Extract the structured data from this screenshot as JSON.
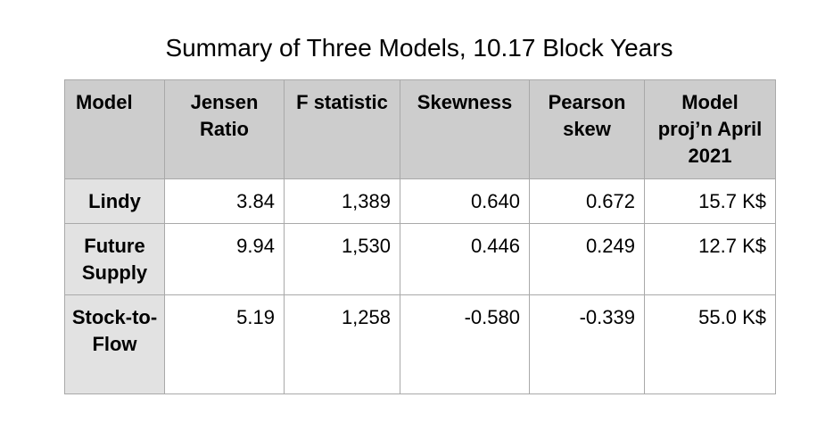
{
  "title": "Summary of Three Models, 10.17 Block Years",
  "chart_data": {
    "type": "table",
    "title": "Summary of Three Models, 10.17 Block Years",
    "columns": [
      "Model",
      "Jensen Ratio",
      "F statistic",
      "Skewness",
      "Pearson skew",
      "Model proj’n April 2021"
    ],
    "rows": [
      {
        "model": "Lindy",
        "cells": [
          "3.84",
          "1,389",
          "0.640",
          "0.672",
          "15.7 K$"
        ]
      },
      {
        "model": "Future Supply",
        "cells": [
          "9.94",
          "1,530",
          "0.446",
          "0.249",
          "12.7 K$"
        ]
      },
      {
        "model": "Stock-to-Flow",
        "cells": [
          "5.19",
          "1,258",
          "-0.580",
          "-0.339",
          "55.0 K$"
        ]
      }
    ]
  },
  "colors": {
    "header_bg": "#cdcdcd",
    "row_header_bg": "#e2e2e2",
    "cell_bg": "#ffffff",
    "grid": "#a9a9a9",
    "text": "#000000"
  }
}
